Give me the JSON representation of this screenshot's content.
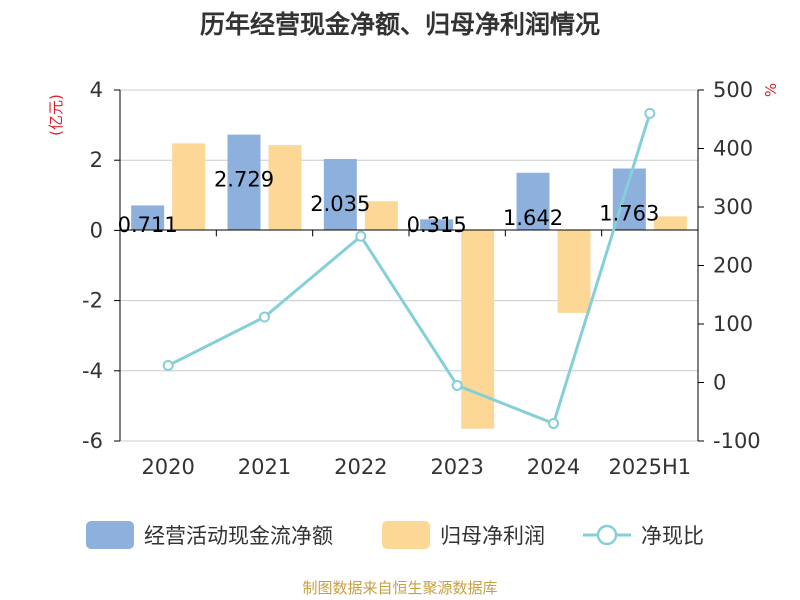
{
  "chart_data": {
    "type": "bar",
    "title": "历年经营现金净额、归母净利润情况",
    "categories": [
      "2020",
      "2021",
      "2022",
      "2023",
      "2024",
      "2025H1"
    ],
    "series": [
      {
        "name": "经营活动现金流净额",
        "type": "bar",
        "axis": "left",
        "color": "#8eb0dd",
        "values": [
          0.711,
          2.729,
          2.035,
          0.315,
          1.642,
          1.763
        ],
        "labels": [
          "0.711",
          "2.729",
          "2.035",
          "0.315",
          "1.642",
          "1.763"
        ]
      },
      {
        "name": "归母净利润",
        "type": "bar",
        "axis": "left",
        "color": "#fdd795",
        "values": [
          2.48,
          2.43,
          0.83,
          -5.65,
          -2.35,
          0.4
        ]
      },
      {
        "name": "净现比",
        "type": "line",
        "axis": "right",
        "color": "#85d0d8",
        "values": [
          29,
          112,
          250,
          -5,
          -70,
          460
        ]
      }
    ],
    "y_left": {
      "label": "(亿元)",
      "range": [
        -6,
        4
      ],
      "ticks": [
        4,
        2,
        0,
        -2,
        -4,
        -6
      ],
      "tick_labels": [
        "4",
        "2",
        "0",
        "-2",
        "-4",
        "-6"
      ]
    },
    "y_right": {
      "label": "%",
      "range": [
        -100,
        500
      ],
      "ticks": [
        500,
        400,
        300,
        200,
        100,
        0,
        -100
      ],
      "tick_labels": [
        "500",
        "400",
        "300",
        "200",
        "100",
        "0",
        "-100"
      ]
    },
    "grid": true,
    "legend_position": "bottom",
    "source": "制图数据来自恒生聚源数据库"
  }
}
